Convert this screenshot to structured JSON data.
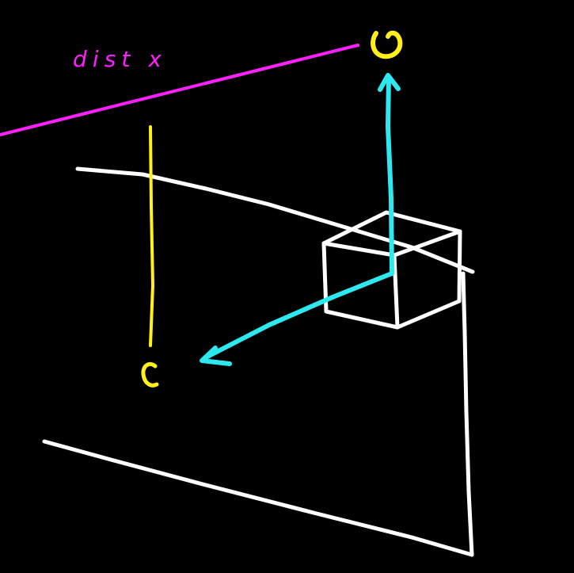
{
  "colors": {
    "background": "#000000",
    "plane": "#ffffff",
    "cube": "#ffffff",
    "axes": "#2ee8f0",
    "distance_line": "#ff1fff",
    "distance_label": "#ff1fff",
    "marker": "#ffef1a",
    "marker_line": "#ffef1a"
  },
  "labels": {
    "distance": "dist x"
  },
  "markers": [
    {
      "name": "top-marker",
      "symbol": "circle"
    },
    {
      "name": "bottom-marker",
      "symbol": "open-c"
    }
  ]
}
